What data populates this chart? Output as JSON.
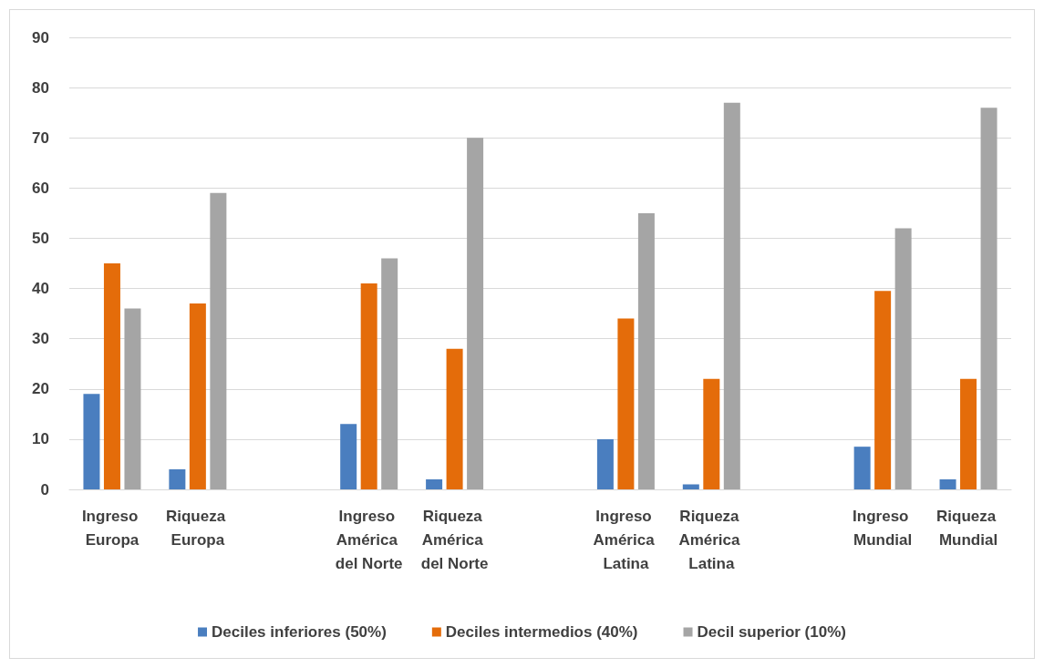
{
  "chart_data": {
    "type": "bar",
    "categories": [
      "Ingreso Europa",
      "Riqueza Europa",
      null,
      "Ingreso América del Norte",
      "Riqueza América del Norte",
      null,
      "Ingreso América Latina",
      "Riqueza América Latina",
      null,
      "Ingreso Mundial",
      "Riqueza Mundial"
    ],
    "series": [
      {
        "name": "Deciles inferiores (50%)",
        "color": "#4a7ebf",
        "values": [
          19,
          4,
          null,
          13,
          2,
          null,
          10,
          1,
          null,
          8.5,
          2
        ]
      },
      {
        "name": "Deciles intermedios (40%)",
        "color": "#e46c0a",
        "values": [
          45,
          37,
          null,
          41,
          28,
          null,
          34,
          22,
          null,
          39.5,
          22
        ]
      },
      {
        "name": "Decil superior (10%)",
        "color": "#a5a5a5",
        "values": [
          36,
          59,
          null,
          46,
          70,
          null,
          55,
          77,
          null,
          52,
          76
        ]
      }
    ],
    "ylim": [
      0,
      90
    ],
    "yticks": [
      0,
      10,
      20,
      30,
      40,
      50,
      60,
      70,
      80,
      90
    ],
    "grid": "y",
    "legend": "bottom"
  }
}
